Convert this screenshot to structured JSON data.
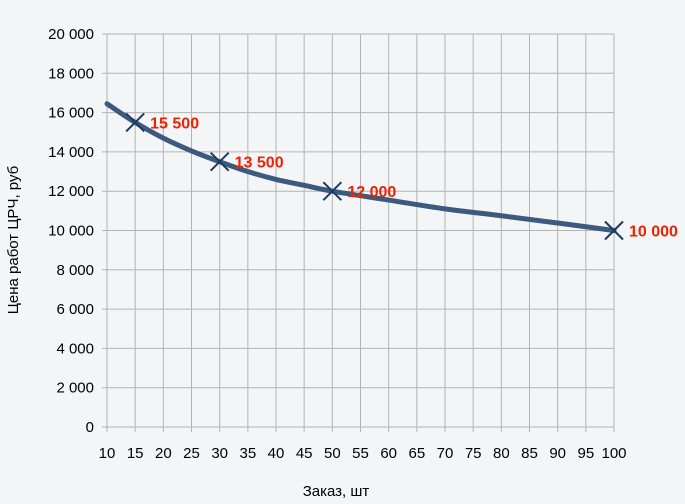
{
  "chart_data": {
    "type": "line",
    "title": "",
    "xlabel": "Заказ, шт",
    "ylabel": "Цена работ ЦРЧ, руб",
    "xlim": [
      10,
      100
    ],
    "ylim": [
      0,
      20000
    ],
    "x_ticks": [
      "10",
      "15",
      "20",
      "25",
      "30",
      "35",
      "40",
      "45",
      "50",
      "55",
      "60",
      "65",
      "70",
      "75",
      "80",
      "85",
      "90",
      "95",
      "100"
    ],
    "y_ticks": [
      "0",
      "2 000",
      "4 000",
      "6 000",
      "8 000",
      "10 000",
      "12 000",
      "14 000",
      "16 000",
      "18 000",
      "20 000"
    ],
    "grid": true,
    "legend": "none",
    "series": [
      {
        "curve": [
          {
            "x": 10,
            "y": 16450
          },
          {
            "x": 15,
            "y": 15500
          },
          {
            "x": 20,
            "y": 14700
          },
          {
            "x": 25,
            "y": 14050
          },
          {
            "x": 30,
            "y": 13500
          },
          {
            "x": 35,
            "y": 13000
          },
          {
            "x": 40,
            "y": 12600
          },
          {
            "x": 45,
            "y": 12300
          },
          {
            "x": 50,
            "y": 12000
          },
          {
            "x": 60,
            "y": 11550
          },
          {
            "x": 70,
            "y": 11100
          },
          {
            "x": 80,
            "y": 10750
          },
          {
            "x": 90,
            "y": 10380
          },
          {
            "x": 100,
            "y": 10000
          }
        ],
        "markers": [
          {
            "x": 15,
            "y": 15500,
            "label": "15 500"
          },
          {
            "x": 30,
            "y": 13500,
            "label": "13 500"
          },
          {
            "x": 50,
            "y": 12000,
            "label": "12 000"
          },
          {
            "x": 100,
            "y": 10000,
            "label": "10 000"
          }
        ]
      }
    ],
    "colors": {
      "line": "#3b5a7d",
      "marker": "#1f3a5f",
      "data_label": "#ee2200",
      "grid": "#b4b4b4",
      "background": "#f3f5f7"
    }
  }
}
